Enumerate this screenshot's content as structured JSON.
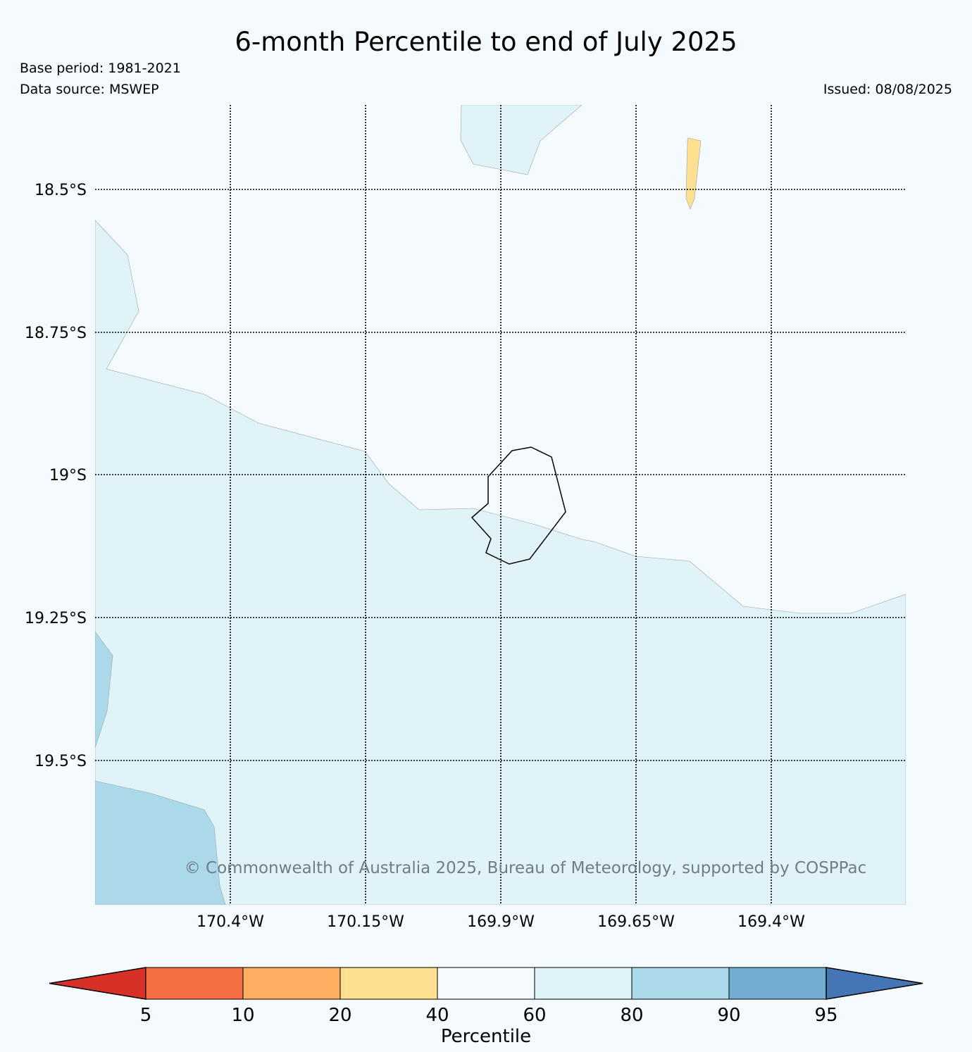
{
  "header": {
    "title": "6-month Percentile to end of July 2025",
    "base_period": "Base period: 1981-2021",
    "data_source": "Data source: MSWEP",
    "issued": "Issued: 08/08/2025"
  },
  "map": {
    "lat_labels": [
      "18.5°S",
      "18.75°S",
      "19°S",
      "19.25°S",
      "19.5°S"
    ],
    "lon_labels": [
      "170.4°W",
      "170.15°W",
      "169.9°W",
      "169.65°W",
      "169.4°W"
    ],
    "gridlines": "dotted",
    "copyright": "© Commonwealth of Australia 2025, Bureau of Meteorology, supported by COSPPac"
  },
  "colorbar": {
    "label": "Percentile",
    "ticks": [
      "5",
      "10",
      "20",
      "40",
      "60",
      "80",
      "90",
      "95"
    ],
    "colors": {
      "below_5": "#d73027",
      "5_10": "#f46d43",
      "10_20": "#fdae61",
      "20_40": "#fee090",
      "40_60": "#f4fafd",
      "60_80": "#e0f3f8",
      "80_90": "#abd9e9",
      "90_95": "#74add1",
      "above_95": "#4575b4"
    }
  }
}
